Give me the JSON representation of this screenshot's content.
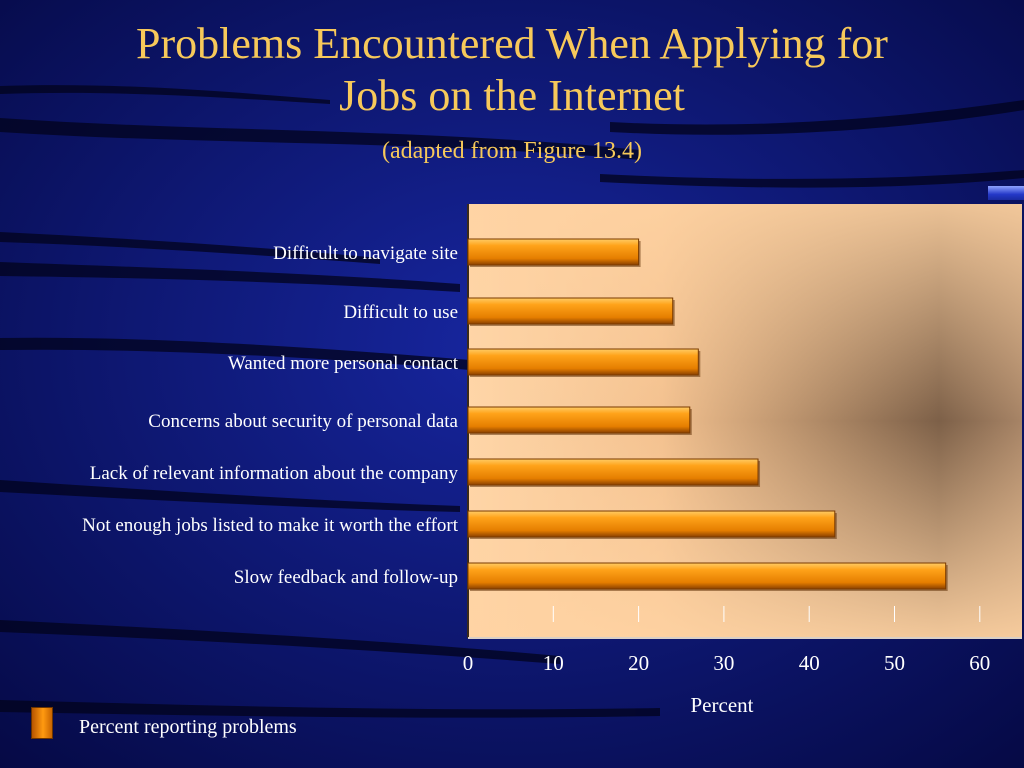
{
  "slide": {
    "title_line1": "Problems Encountered When Applying for",
    "title_line2": "Jobs on the Internet",
    "subtitle": "(adapted from Figure 13.4)",
    "legend_label": "Percent reporting problems"
  },
  "colors": {
    "background": "#0a0f68",
    "title": "#f7c95a",
    "bar_light": "#ffa31a",
    "bar_dark": "#b35200",
    "plot_light": "#ffd3a3",
    "plot_dark": "#7d6048"
  },
  "chart_data": {
    "type": "bar",
    "orientation": "horizontal",
    "categories": [
      "Difficult to navigate site",
      "Difficult to use",
      "Wanted more personal contact",
      "Concerns about security of personal data",
      "Lack of relevant information about the company",
      "Not enough jobs listed to make it worth the effort",
      "Slow feedback and follow-up"
    ],
    "series": [
      {
        "name": "Percent reporting problems",
        "values": [
          20,
          24,
          27,
          26,
          34,
          43,
          56
        ]
      }
    ],
    "xlabel": "Percent",
    "xlim": [
      0,
      65
    ],
    "xticks": [
      0,
      10,
      20,
      30,
      40,
      50,
      60
    ],
    "legend": "bottom-left"
  }
}
